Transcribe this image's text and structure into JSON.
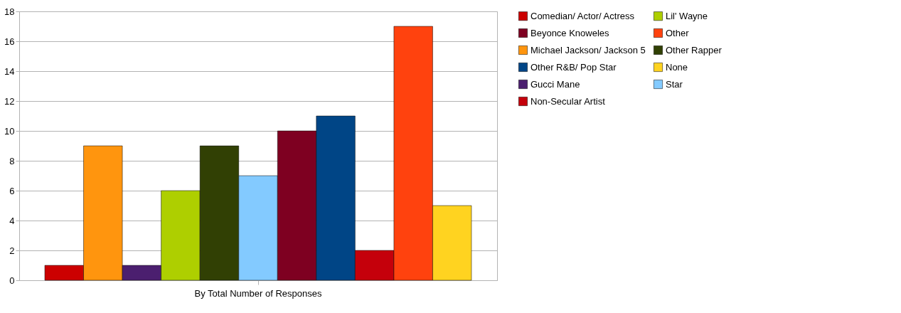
{
  "chart_data": {
    "type": "bar",
    "categories": [
      "By Total Number of Responses"
    ],
    "xlabel": null,
    "series": [
      {
        "name": "Comedian/ Actor/ Actress",
        "color": "#cc0000",
        "values": [
          1
        ]
      },
      {
        "name": "Michael Jackson/ Jackson 5",
        "color": "#ff950e",
        "values": [
          9
        ]
      },
      {
        "name": "Gucci Mane",
        "color": "#4b1f6f",
        "values": [
          1
        ]
      },
      {
        "name": "Lil' Wayne",
        "color": "#aecf00",
        "values": [
          6
        ]
      },
      {
        "name": "Other Rapper",
        "color": "#314004",
        "values": [
          9
        ]
      },
      {
        "name": "Star",
        "color": "#83caff",
        "values": [
          7
        ]
      },
      {
        "name": "Beyonce Knoweles",
        "color": "#7e0021",
        "values": [
          10
        ]
      },
      {
        "name": "Other R&B/ Pop Star",
        "color": "#004586",
        "values": [
          11
        ]
      },
      {
        "name": "Non-Secular Artist",
        "color": "#c5000b",
        "values": [
          2
        ]
      },
      {
        "name": "Other",
        "color": "#ff420e",
        "values": [
          17
        ]
      },
      {
        "name": "None",
        "color": "#ffd320",
        "values": [
          5
        ]
      }
    ],
    "ylim": [
      0,
      18
    ],
    "yticks": [
      0,
      2,
      4,
      6,
      8,
      10,
      12,
      14,
      16,
      18
    ],
    "grid": "y",
    "legend": "right"
  }
}
